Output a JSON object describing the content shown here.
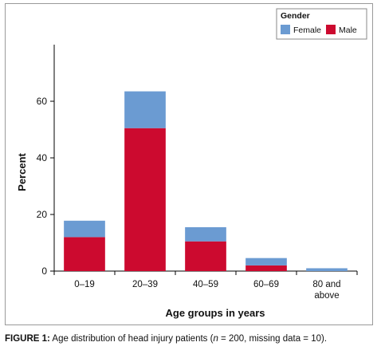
{
  "chart_data": {
    "type": "bar",
    "stacked": true,
    "categories": [
      "0–19",
      "20–39",
      "40–59",
      "60–69",
      "80 and above"
    ],
    "category_lines": [
      [
        "0–19"
      ],
      [
        "20–39"
      ],
      [
        "40–59"
      ],
      [
        "60–69"
      ],
      [
        "80 and",
        "above"
      ]
    ],
    "series": [
      {
        "name": "Male",
        "color": "#cc0a2f",
        "values": [
          12,
          50.5,
          10.5,
          2,
          0
        ]
      },
      {
        "name": "Female",
        "color": "#6b9bd2",
        "values": [
          5.8,
          13,
          5,
          2.6,
          1
        ]
      }
    ],
    "xlabel": "Age groups in years",
    "ylabel": "Percent",
    "ylim": [
      0,
      80
    ],
    "yticks": [
      0,
      20,
      40,
      60
    ],
    "grid": false,
    "legend": {
      "title": "Gender",
      "placement": "top-right",
      "order": [
        "Female",
        "Male"
      ]
    }
  },
  "caption": {
    "label": "FIGURE 1:",
    "text_before": " Age distribution of head injury patients (",
    "n_symbol": "n",
    "text_after": " = 200, missing data = 10)."
  }
}
